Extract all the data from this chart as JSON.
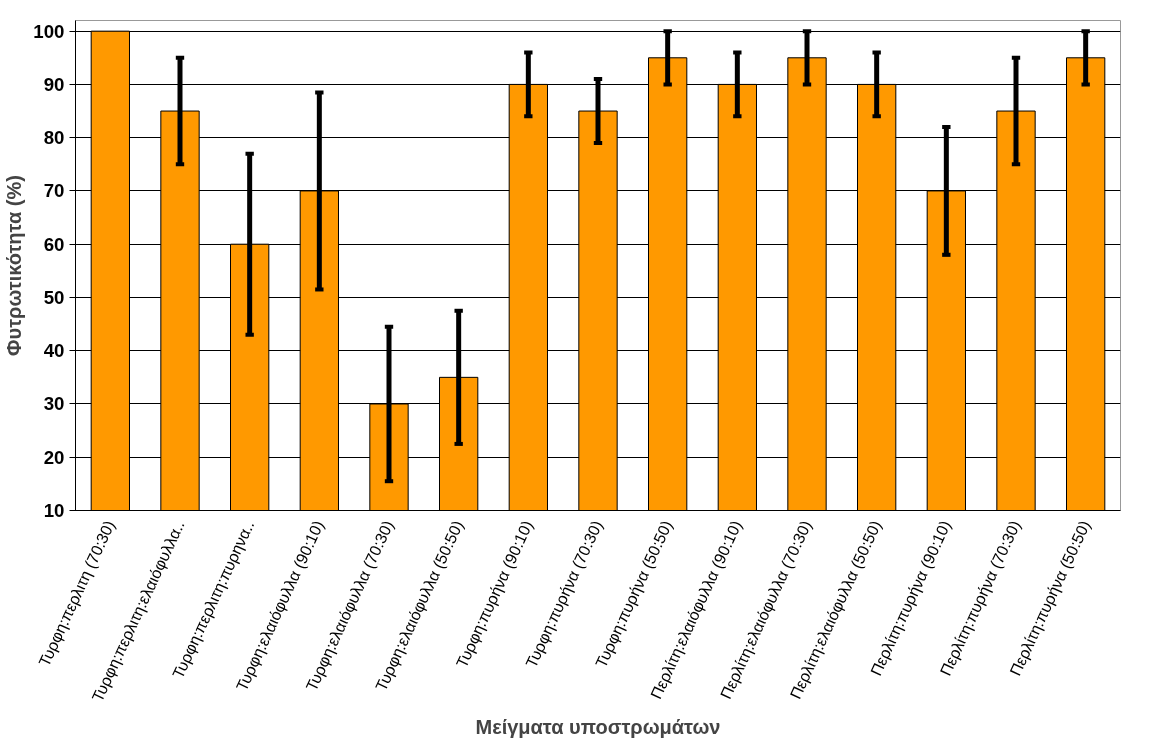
{
  "chart_data": {
    "type": "bar",
    "xlabel": "Μείγματα υποστρωμάτων",
    "ylabel": "Φυτρωτικότητα (%)",
    "categories": [
      "Τυρφη:περλιτη (70:30)",
      "Τυρφη:περλιτη:ελαιόφυλλα..",
      "Τυρφη:περλιτη:πυρηνα..",
      "Τυρφη:ελαιόφυλλα (90:10)",
      "Τυρφη:ελαιόφυλλα (70:30)",
      "Τυρφη:ελαιόφυλλα (50:50)",
      "Τυρφη:πυρήνα (90:10)",
      "Τυρφη:πυρήνα (70:30)",
      "Τυρφη:πυρήνα (50:50)",
      "Περλίτη:ελαιόφυλλα (90:10)",
      "Περλίτη:ελαιόφυλλα (70:30)",
      "Περλίτη:ελαιόφυλλα (50:50)",
      "Περλίτη:πυρήνα (90:10)",
      "Περλίτη:πυρήνα (70:30)",
      "Περλίτη:πυρήνα (50:50)"
    ],
    "series": [
      {
        "color": "#ff9900",
        "values": [
          100,
          85,
          60,
          70,
          30,
          35,
          90,
          85,
          95,
          90,
          95,
          90,
          70,
          85,
          95
        ],
        "errors": [
          null,
          10,
          17,
          18.5,
          14.5,
          12.5,
          6,
          6,
          5,
          6,
          5,
          6,
          12,
          10,
          5
        ]
      }
    ],
    "ylim": [
      10,
      102
    ],
    "yticks": [
      10,
      20,
      30,
      40,
      50,
      60,
      70,
      80,
      90,
      100
    ],
    "grid": "y"
  }
}
